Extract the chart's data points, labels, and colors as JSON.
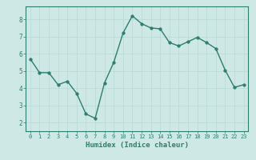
{
  "x": [
    0,
    1,
    2,
    3,
    4,
    5,
    6,
    7,
    8,
    9,
    10,
    11,
    12,
    13,
    14,
    15,
    16,
    17,
    18,
    19,
    20,
    21,
    22,
    23
  ],
  "y": [
    5.7,
    4.9,
    4.9,
    4.2,
    4.4,
    3.7,
    2.5,
    2.25,
    4.3,
    5.5,
    7.2,
    8.2,
    7.75,
    7.5,
    7.45,
    6.65,
    6.45,
    6.7,
    6.95,
    6.65,
    6.3,
    5.05,
    4.05,
    4.2
  ],
  "xlabel": "Humidex (Indice chaleur)",
  "xlim": [
    -0.5,
    23.5
  ],
  "ylim": [
    1.5,
    8.75
  ],
  "yticks": [
    2,
    3,
    4,
    5,
    6,
    7,
    8
  ],
  "xticks": [
    0,
    1,
    2,
    3,
    4,
    5,
    6,
    7,
    8,
    9,
    10,
    11,
    12,
    13,
    14,
    15,
    16,
    17,
    18,
    19,
    20,
    21,
    22,
    23
  ],
  "line_color": "#2e7d6e",
  "marker_color": "#2e7d6e",
  "bg_color": "#cde8e5",
  "grid_color": "#b8d8d4",
  "axis_bg": "#cde8e5",
  "border_color": "#2e7d6e",
  "xlabel_color": "#2e7d6e",
  "tick_color": "#2e7d6e"
}
